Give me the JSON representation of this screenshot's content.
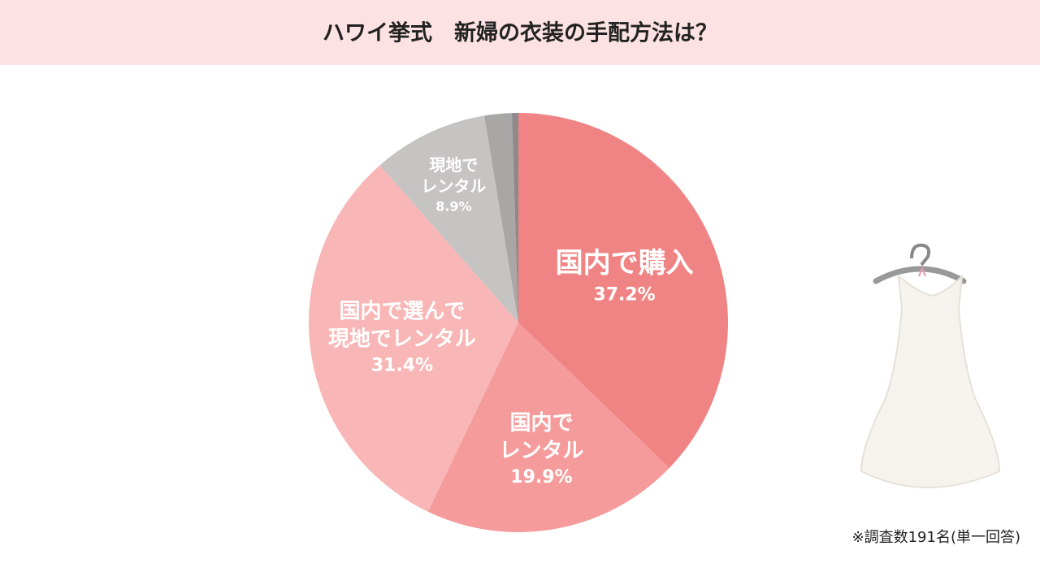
{
  "chart_data": {
    "type": "pie",
    "title": "ハワイ挙式　新婦の衣装の手配方法は？",
    "note": "※調査数191名(単一回答)",
    "categories": [
      "国内で購入",
      "国内で\nレンタル",
      "国内で選んで\n現地でレンタル",
      "現地で\nレンタル",
      null,
      null
    ],
    "values": [
      37.2,
      19.9,
      31.4,
      8.9,
      2.1,
      0.5
    ],
    "value_labels": [
      "37.2%",
      "19.9%",
      "31.4%",
      "8.9%",
      null,
      null
    ],
    "colors": [
      "#f08484",
      "#f59b9b",
      "#f9b6b6",
      "#c6c3c3",
      "#a9a6a6",
      "#8c8a8a"
    ]
  }
}
